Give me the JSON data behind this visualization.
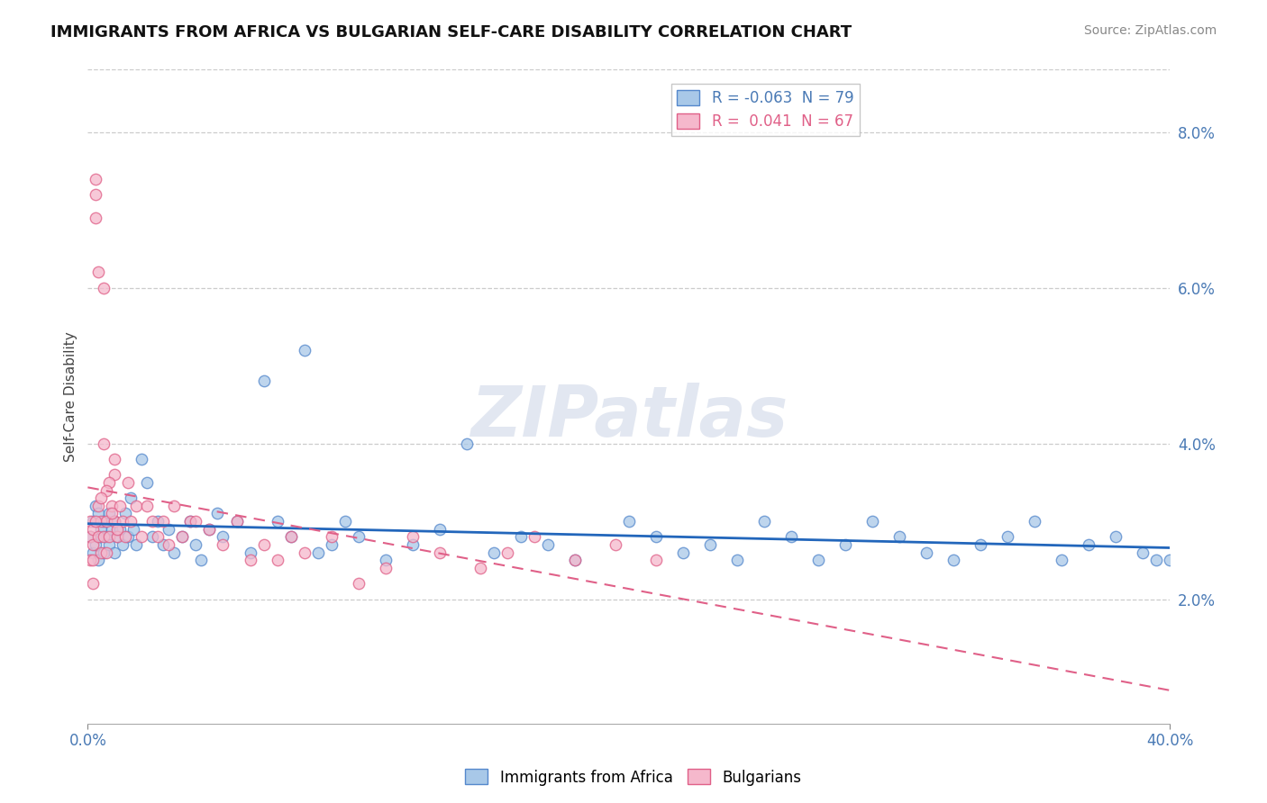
{
  "title": "IMMIGRANTS FROM AFRICA VS BULGARIAN SELF-CARE DISABILITY CORRELATION CHART",
  "source": "Source: ZipAtlas.com",
  "ylabel": "Self-Care Disability",
  "ytick_labels": [
    "2.0%",
    "4.0%",
    "6.0%",
    "8.0%"
  ],
  "ytick_values": [
    0.02,
    0.04,
    0.06,
    0.08
  ],
  "xmin": 0.0,
  "xmax": 0.4,
  "ymin": 0.004,
  "ymax": 0.088,
  "series_blue": {
    "color": "#a8c8e8",
    "edge_color": "#5588cc",
    "trend_color": "#2266bb",
    "trend_lw": 2.0,
    "label_legend": "R = -0.063  N = 79",
    "label_bottom": "Immigrants from Africa"
  },
  "series_pink": {
    "color": "#f5b8cc",
    "edge_color": "#e06088",
    "trend_color": "#e06088",
    "trend_lw": 1.5,
    "trend_dash": [
      6,
      4
    ],
    "label_legend": "R =  0.041  N = 67",
    "label_bottom": "Bulgarians"
  },
  "watermark_text": "ZIPatlas",
  "watermark_color": "#d0d8e8",
  "background_color": "#ffffff",
  "grid_color": "#cccccc",
  "blue_scatter_x": [
    0.001,
    0.002,
    0.002,
    0.003,
    0.003,
    0.004,
    0.004,
    0.005,
    0.005,
    0.006,
    0.006,
    0.007,
    0.008,
    0.008,
    0.009,
    0.01,
    0.01,
    0.011,
    0.012,
    0.013,
    0.014,
    0.015,
    0.016,
    0.017,
    0.018,
    0.02,
    0.022,
    0.024,
    0.026,
    0.028,
    0.03,
    0.032,
    0.035,
    0.038,
    0.04,
    0.042,
    0.045,
    0.048,
    0.05,
    0.055,
    0.06,
    0.065,
    0.07,
    0.075,
    0.08,
    0.085,
    0.09,
    0.095,
    0.1,
    0.11,
    0.12,
    0.13,
    0.14,
    0.15,
    0.16,
    0.17,
    0.18,
    0.2,
    0.21,
    0.22,
    0.23,
    0.24,
    0.25,
    0.26,
    0.27,
    0.28,
    0.29,
    0.3,
    0.31,
    0.32,
    0.33,
    0.34,
    0.35,
    0.36,
    0.37,
    0.38,
    0.39,
    0.4,
    0.395
  ],
  "blue_scatter_y": [
    0.028,
    0.026,
    0.03,
    0.027,
    0.032,
    0.025,
    0.031,
    0.028,
    0.029,
    0.026,
    0.03,
    0.028,
    0.027,
    0.031,
    0.029,
    0.026,
    0.03,
    0.028,
    0.029,
    0.027,
    0.031,
    0.028,
    0.033,
    0.029,
    0.027,
    0.038,
    0.035,
    0.028,
    0.03,
    0.027,
    0.029,
    0.026,
    0.028,
    0.03,
    0.027,
    0.025,
    0.029,
    0.031,
    0.028,
    0.03,
    0.026,
    0.048,
    0.03,
    0.028,
    0.052,
    0.026,
    0.027,
    0.03,
    0.028,
    0.025,
    0.027,
    0.029,
    0.04,
    0.026,
    0.028,
    0.027,
    0.025,
    0.03,
    0.028,
    0.026,
    0.027,
    0.025,
    0.03,
    0.028,
    0.025,
    0.027,
    0.03,
    0.028,
    0.026,
    0.025,
    0.027,
    0.028,
    0.03,
    0.025,
    0.027,
    0.028,
    0.026,
    0.025,
    0.025
  ],
  "pink_scatter_x": [
    0.001,
    0.001,
    0.001,
    0.002,
    0.002,
    0.002,
    0.003,
    0.003,
    0.003,
    0.004,
    0.004,
    0.005,
    0.005,
    0.006,
    0.006,
    0.007,
    0.007,
    0.008,
    0.009,
    0.01,
    0.01,
    0.011,
    0.012,
    0.013,
    0.014,
    0.015,
    0.016,
    0.018,
    0.02,
    0.022,
    0.024,
    0.026,
    0.028,
    0.03,
    0.032,
    0.035,
    0.038,
    0.04,
    0.045,
    0.05,
    0.055,
    0.06,
    0.065,
    0.07,
    0.075,
    0.08,
    0.09,
    0.1,
    0.11,
    0.12,
    0.13,
    0.145,
    0.155,
    0.165,
    0.18,
    0.195,
    0.21,
    0.01,
    0.008,
    0.006,
    0.004,
    0.003,
    0.002,
    0.007,
    0.005,
    0.009,
    0.011
  ],
  "pink_scatter_y": [
    0.028,
    0.025,
    0.03,
    0.027,
    0.029,
    0.025,
    0.072,
    0.074,
    0.069,
    0.028,
    0.062,
    0.03,
    0.026,
    0.06,
    0.028,
    0.03,
    0.026,
    0.028,
    0.032,
    0.036,
    0.03,
    0.028,
    0.032,
    0.03,
    0.028,
    0.035,
    0.03,
    0.032,
    0.028,
    0.032,
    0.03,
    0.028,
    0.03,
    0.027,
    0.032,
    0.028,
    0.03,
    0.03,
    0.029,
    0.027,
    0.03,
    0.025,
    0.027,
    0.025,
    0.028,
    0.026,
    0.028,
    0.022,
    0.024,
    0.028,
    0.026,
    0.024,
    0.026,
    0.028,
    0.025,
    0.027,
    0.025,
    0.038,
    0.035,
    0.04,
    0.032,
    0.03,
    0.022,
    0.034,
    0.033,
    0.031,
    0.029
  ]
}
